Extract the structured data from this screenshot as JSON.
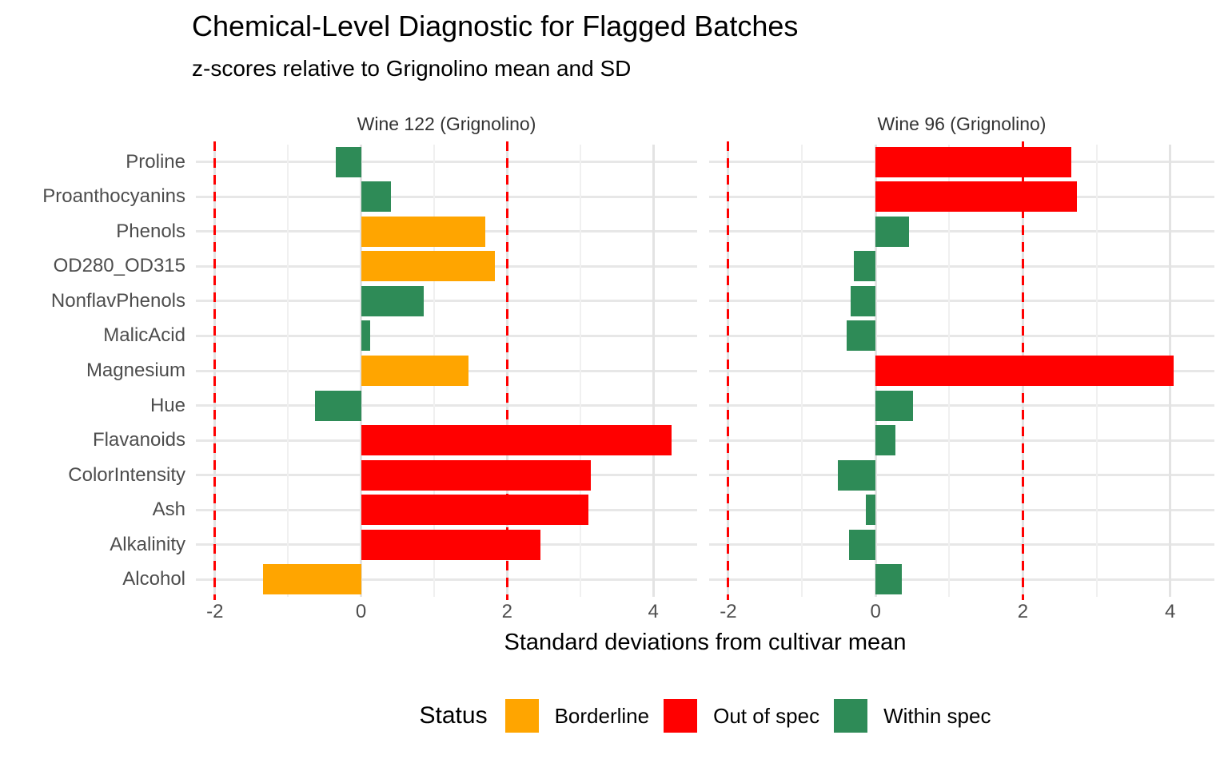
{
  "title": "Chemical-Level Diagnostic for Flagged Batches",
  "subtitle": "z-scores relative to Grignolino mean and SD",
  "axis": {
    "xlabel": "Standard deviations from cultivar mean",
    "tick_values": [
      -2,
      0,
      2,
      4
    ],
    "tick_labels": [
      "-2",
      "0",
      "2",
      "4"
    ],
    "range": [
      -2.26,
      4.6
    ],
    "gridline_values": [
      -2,
      -1,
      0,
      1,
      2,
      3,
      4
    ],
    "vline_values": [
      -2,
      2
    ],
    "vline_color": "#ff0000"
  },
  "legend": {
    "title": "Status",
    "items": [
      {
        "label": "Borderline",
        "color": "#FFA500"
      },
      {
        "label": "Out of spec",
        "color": "#FF0000"
      },
      {
        "label": "Within spec",
        "color": "#2E8B57"
      }
    ]
  },
  "chart_data": {
    "type": "bar",
    "orientation": "horizontal",
    "title": "Chemical-Level Diagnostic for Flagged Batches",
    "subtitle": "z-scores relative to Grignolino mean and SD",
    "xlabel": "Standard deviations from cultivar mean",
    "xlim": [
      -2.26,
      4.6
    ],
    "grid": true,
    "legend_position": "bottom",
    "categories_top_to_bottom": [
      "Proline",
      "Proanthocyanins",
      "Phenols",
      "OD280_OD315",
      "NonflavPhenols",
      "MalicAcid",
      "Magnesium",
      "Hue",
      "Flavanoids",
      "ColorIntensity",
      "Ash",
      "Alkalinity",
      "Alcohol"
    ],
    "status_colors": {
      "Borderline": "#FFA500",
      "Out of spec": "#FF0000",
      "Within spec": "#2E8B57"
    },
    "facets": [
      {
        "title": "Wine 122 (Grignolino)",
        "values": [
          -0.34,
          0.41,
          1.7,
          1.83,
          0.86,
          0.12,
          1.47,
          -0.63,
          4.25,
          3.14,
          3.11,
          2.46,
          -1.34
        ],
        "status": [
          "Within spec",
          "Within spec",
          "Borderline",
          "Borderline",
          "Within spec",
          "Within spec",
          "Borderline",
          "Within spec",
          "Out of spec",
          "Out of spec",
          "Out of spec",
          "Out of spec",
          "Borderline"
        ]
      },
      {
        "title": "Wine 96 (Grignolino)",
        "values": [
          2.66,
          2.73,
          0.45,
          -0.3,
          -0.34,
          -0.39,
          4.05,
          0.51,
          0.27,
          -0.51,
          -0.13,
          -0.36,
          0.36
        ],
        "status": [
          "Out of spec",
          "Out of spec",
          "Within spec",
          "Within spec",
          "Within spec",
          "Within spec",
          "Out of spec",
          "Within spec",
          "Within spec",
          "Within spec",
          "Within spec",
          "Within spec",
          "Within spec"
        ]
      }
    ],
    "reference_lines": {
      "values": [
        -2,
        2
      ],
      "style": "dashed",
      "color": "#ff0000"
    }
  }
}
